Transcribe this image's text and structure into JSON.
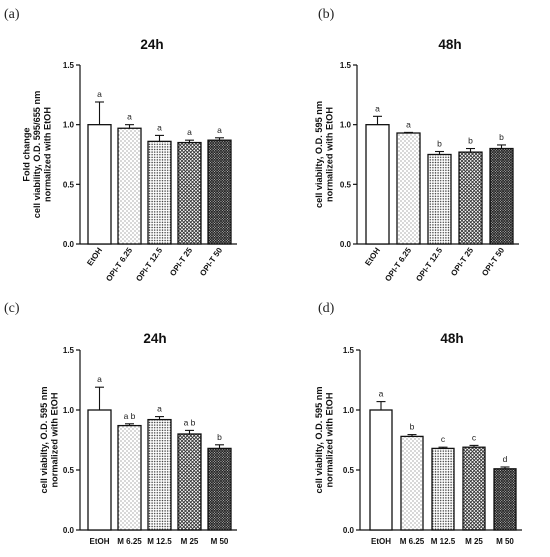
{
  "chart_data": [
    {
      "panel_label": "(a)",
      "type": "bar",
      "title": "24h",
      "ylabel_lines": [
        "Fold  change",
        "cell viability, O.D. 595/655 nm",
        "normalized with EtOH"
      ],
      "ylim": [
        0,
        1.5
      ],
      "yticks": [
        "0.0",
        "0.5",
        "1.0",
        "1.5"
      ],
      "categories": [
        "EtOH",
        "OPI-T 6.25",
        "OPI-T 12.5",
        "OPI-T 25",
        "OPI-T 50"
      ],
      "values": [
        1.0,
        0.97,
        0.86,
        0.85,
        0.87
      ],
      "errors": [
        0.19,
        0.03,
        0.05,
        0.02,
        0.02
      ],
      "significance": [
        "a",
        "a",
        "a",
        "a",
        "a"
      ],
      "patterns": [
        "white",
        "dots-sparse",
        "dots-dense",
        "crosshatch",
        "crosshatch-dense"
      ],
      "legend": "none",
      "grid": false
    },
    {
      "panel_label": "(b)",
      "type": "bar",
      "title": "48h",
      "ylabel_lines": [
        "cell viabilty, O.D. 595 nm",
        "normalized with EtOH"
      ],
      "ylim": [
        0,
        1.5
      ],
      "yticks": [
        "0.0",
        "0.5",
        "1.0",
        "1.5"
      ],
      "categories": [
        "EtOH",
        "OPI-T 6.25",
        "OPI-T 12.5",
        "OPI-T 25",
        "OPI-T 50"
      ],
      "values": [
        1.0,
        0.93,
        0.75,
        0.77,
        0.8
      ],
      "errors": [
        0.07,
        0.005,
        0.025,
        0.03,
        0.03
      ],
      "significance": [
        "a",
        "a",
        "b",
        "b",
        "b"
      ],
      "patterns": [
        "white",
        "dots-sparse",
        "dots-dense",
        "crosshatch",
        "crosshatch-dense"
      ],
      "legend": "none",
      "grid": false
    },
    {
      "panel_label": "(c)",
      "type": "bar",
      "title": "24h",
      "ylabel_lines": [
        "cell viabilty, O.D. 595 nm",
        "normalized with EtOH"
      ],
      "ylim": [
        0,
        1.5
      ],
      "yticks": [
        "0.0",
        "0.5",
        "1.0",
        "1.5"
      ],
      "categories": [
        "EtOH",
        "M 6.25",
        "M 12.5",
        "M 25",
        "M 50"
      ],
      "values": [
        1.0,
        0.87,
        0.92,
        0.8,
        0.68
      ],
      "errors": [
        0.19,
        0.015,
        0.025,
        0.03,
        0.03
      ],
      "significance": [
        "a",
        "a b",
        "a",
        "a b",
        "b"
      ],
      "patterns": [
        "white",
        "dots-sparse",
        "dots-dense",
        "crosshatch",
        "crosshatch-dense"
      ],
      "legend": "none",
      "grid": false
    },
    {
      "panel_label": "(d)",
      "type": "bar",
      "title": "48h",
      "ylabel_lines": [
        "cell viabilty, O.D. 595 nm",
        "normalized with EtOH"
      ],
      "ylim": [
        0,
        1.5
      ],
      "yticks": [
        "0.0",
        "0.5",
        "1.0",
        "1.5"
      ],
      "categories": [
        "EtOH",
        "M 6.25",
        "M 12.5",
        "M 25",
        "M 50"
      ],
      "values": [
        1.0,
        0.78,
        0.68,
        0.69,
        0.51
      ],
      "errors": [
        0.07,
        0.015,
        0.01,
        0.015,
        0.015
      ],
      "significance": [
        "a",
        "b",
        "c",
        "c",
        "d"
      ],
      "patterns": [
        "white",
        "dots-sparse",
        "dots-dense",
        "crosshatch",
        "crosshatch-dense"
      ],
      "legend": "none",
      "grid": false
    }
  ],
  "colors": {
    "ink": "#111111",
    "bar_fill": "#ffffff",
    "pattern": "#333333"
  }
}
